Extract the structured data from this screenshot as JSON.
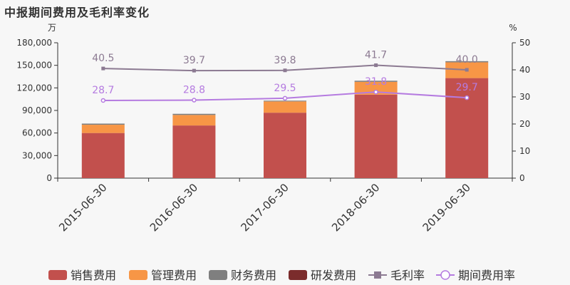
{
  "chart_data": {
    "type": "bar",
    "title": "中报期间费用及毛利率变化",
    "left_unit": "万",
    "right_unit": "%",
    "categories": [
      "2015-06-30",
      "2016-06-30",
      "2017-06-30",
      "2018-06-30",
      "2019-06-30"
    ],
    "left_axis": {
      "ylim": [
        0,
        180000
      ],
      "ticks": [
        "0",
        "30,000",
        "60,000",
        "90,000",
        "120,000",
        "150,000",
        "180,000"
      ]
    },
    "right_axis": {
      "ylim": [
        0,
        50
      ],
      "ticks": [
        "0",
        "10",
        "20",
        "30",
        "40",
        "50"
      ]
    },
    "bar_series": [
      {
        "name": "销售费用",
        "color": "#c2504d",
        "values": [
          60000,
          70000,
          87000,
          111000,
          133000
        ]
      },
      {
        "name": "管理费用",
        "color": "#f79646",
        "values": [
          11000,
          14000,
          15000,
          17000,
          21000
        ]
      },
      {
        "name": "财务费用",
        "color": "#7f7f7f",
        "values": [
          1500,
          1500,
          1000,
          1500,
          1500
        ]
      },
      {
        "name": "研发费用",
        "color": "#7b2c2c",
        "values": [
          0,
          0,
          0,
          0,
          0
        ]
      }
    ],
    "line_series": [
      {
        "name": "毛利率",
        "color": "#8c7a92",
        "marker": "square",
        "values": [
          40.5,
          39.7,
          39.8,
          41.7,
          40.0
        ],
        "labels": [
          "40.5",
          "39.7",
          "39.8",
          "41.7",
          "40.0"
        ]
      },
      {
        "name": "期间费用率",
        "color": "#b57be0",
        "marker": "circle",
        "values": [
          28.7,
          28.8,
          29.5,
          31.8,
          29.7
        ],
        "labels": [
          "28.7",
          "28.8",
          "29.5",
          "31.8",
          "29.7"
        ]
      }
    ],
    "legend_position": "bottom",
    "grid": false
  }
}
